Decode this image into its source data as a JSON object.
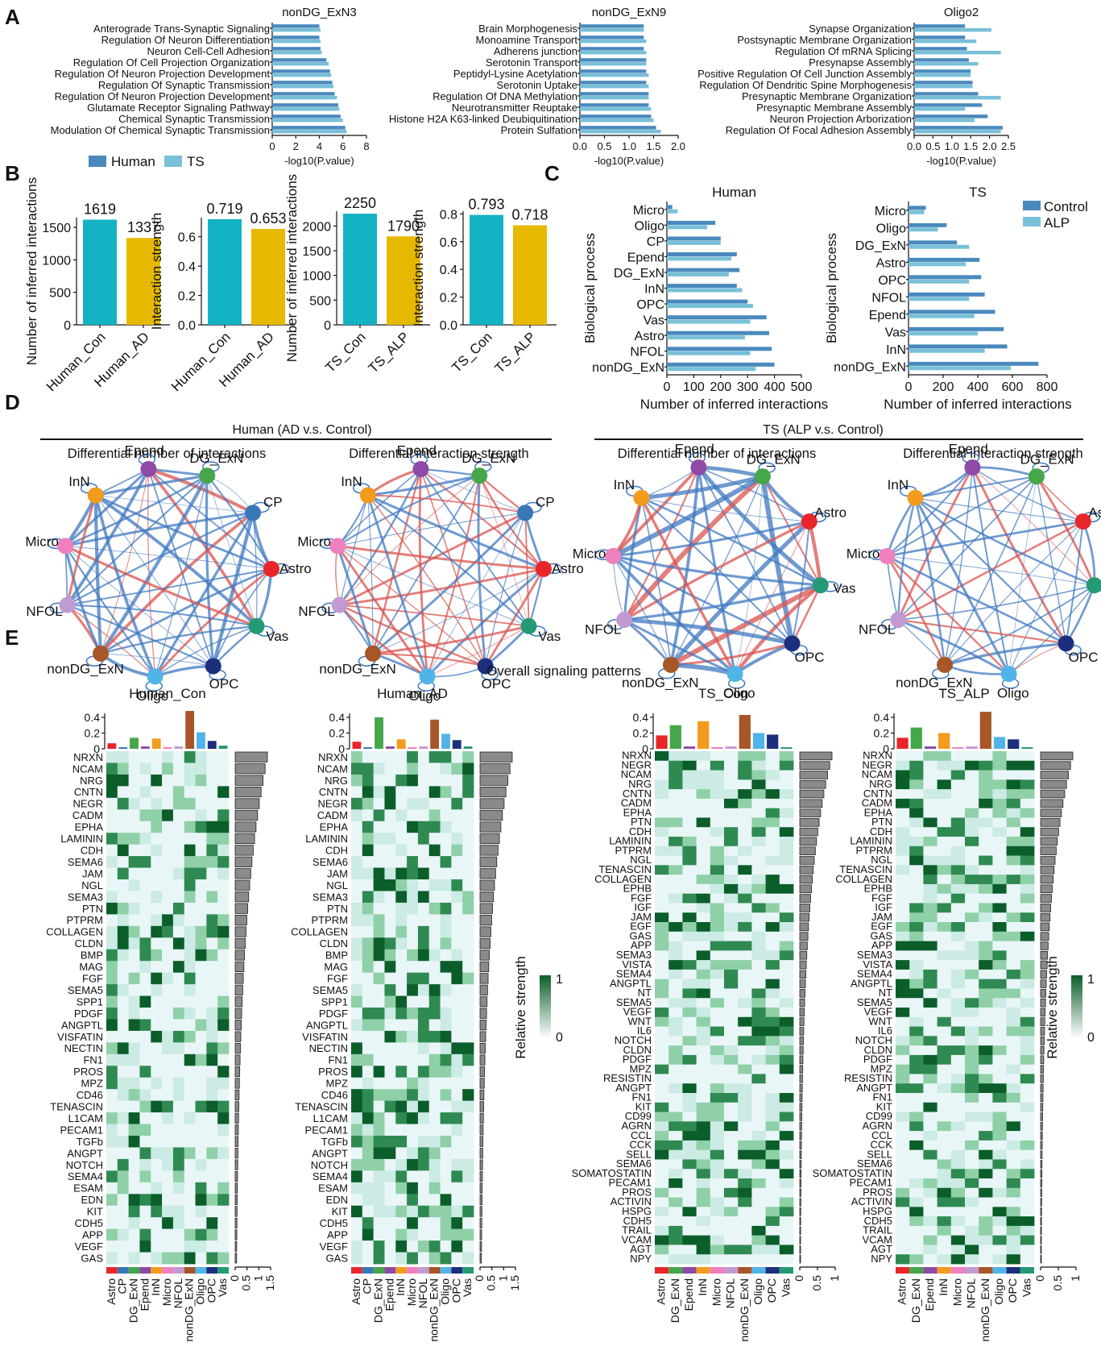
{
  "panel_letters": [
    "A",
    "B",
    "C",
    "D",
    "E"
  ],
  "colors": {
    "human": "#4a89bd",
    "ts": "#79c0d8",
    "control": "#4a89bd",
    "alp": "#79c0d8",
    "con_bar": "#14b3c3",
    "ad_bar": "#e6b800",
    "net_blue": "#3f78c0",
    "net_red": "#d9534f",
    "heat_dark": "#0b5e2a",
    "heat_light": "#e9f6f7",
    "barplot_gray": "#8a8a8a"
  },
  "celltype_colors": {
    "Astro": "#e8262a",
    "CP": "#3878b8",
    "DG_ExN": "#45a64a",
    "Epend": "#8e4aa6",
    "InN": "#f39b1c",
    "Micro": "#f07fbd",
    "NFOL": "#c29ad2",
    "nonDG_ExN": "#a65628",
    "Oligo": "#50b4e8",
    "OPC": "#1c2f7c",
    "Vas": "#249a74"
  },
  "chart_data": [
    {
      "panel": "A",
      "type": "bar",
      "title": "nonDG_ExN3",
      "orientation": "horizontal",
      "xlabel": "-log10(P.value)",
      "xlim": [
        0,
        8
      ],
      "xticks": [
        "0",
        "2",
        "4",
        "6",
        "8"
      ],
      "categories": [
        "Anterograde Trans-Synaptic Signaling",
        "Regulation Of Neuron Differentiation",
        "Neuron Cell-Cell Adhesion",
        "Regulation Of Cell Projection Organization",
        "Regulation Of Neuron Projection Development",
        "Regulation Of Synaptic Transmission",
        "Regulation Of Neuron Projection Development",
        "Glutamate Receptor Signaling Pathway",
        "Chemical Synaptic Transmission",
        "Modulation Of Chemical Synaptic Transmission"
      ],
      "series": [
        {
          "name": "Human",
          "values": [
            4.0,
            4.0,
            4.1,
            4.6,
            4.9,
            5.1,
            5.3,
            5.6,
            5.8,
            6.2
          ]
        },
        {
          "name": "TS",
          "values": [
            4.1,
            4.1,
            4.2,
            4.8,
            5.0,
            5.2,
            5.5,
            5.7,
            6.0,
            6.3
          ]
        }
      ]
    },
    {
      "panel": "A",
      "type": "bar",
      "title": "nonDG_ExN9",
      "orientation": "horizontal",
      "xlabel": "-log10(P.value)",
      "xlim": [
        0,
        2
      ],
      "xticks": [
        "0.0",
        "0.5",
        "1.0",
        "1.5",
        "2.0"
      ],
      "categories": [
        "Brain Morphogenesis",
        "Monoamine Transport",
        "Adherens junction",
        "Serotonin Transport",
        "Peptidyl-Lysine Acetylation",
        "Serotonin Uptake",
        "Regulation Of DNA Methylation",
        "Neurotransmitter Reuptake",
        "Histone H2A K63-linked Deubiquitination",
        "Protein Sulfation"
      ],
      "series": [
        {
          "name": "Human",
          "values": [
            1.3,
            1.3,
            1.3,
            1.35,
            1.35,
            1.35,
            1.4,
            1.4,
            1.45,
            1.55
          ]
        },
        {
          "name": "TS",
          "values": [
            1.3,
            1.35,
            1.35,
            1.35,
            1.4,
            1.4,
            1.4,
            1.45,
            1.5,
            1.65
          ]
        }
      ]
    },
    {
      "panel": "A",
      "type": "bar",
      "title": "Oligo2",
      "orientation": "horizontal",
      "xlabel": "-log10(P.value)",
      "xlim": [
        0,
        2.5
      ],
      "xticks": [
        "0.0",
        "0.5",
        "1.0",
        "1.5",
        "2.0",
        "2.5"
      ],
      "categories": [
        "Synapse Organization",
        "Postsynaptic Membrane Organization",
        "Regulation Of mRNA Splicing",
        "Presynapse Assembly",
        "Positive Regulation Of Cell Junction Assembly",
        "Regulation Of Dendritic Spine Morphogenesis",
        "Presynaptic Membrane Organization",
        "Presynaptic Membrane Assembly",
        "Neuron Projection Arborization",
        "Regulation Of Focal Adhesion Assembly"
      ],
      "series": [
        {
          "name": "Human",
          "values": [
            1.35,
            1.35,
            1.4,
            1.45,
            1.5,
            1.55,
            1.7,
            1.8,
            1.95,
            2.35
          ]
        },
        {
          "name": "TS",
          "values": [
            2.05,
            1.65,
            2.3,
            1.7,
            1.5,
            1.55,
            2.3,
            1.35,
            1.6,
            2.3
          ]
        }
      ]
    },
    {
      "panel": "B",
      "type": "bar",
      "ylabel": "Number of inferred interactions",
      "ylim": [
        0,
        1650
      ],
      "yticks": [
        "0",
        "500",
        "1000",
        "1500"
      ],
      "categories": [
        "Human_Con",
        "Human_AD"
      ],
      "values": [
        1619,
        1337
      ],
      "data_labels": [
        "1619",
        "1337"
      ]
    },
    {
      "panel": "B",
      "type": "bar",
      "ylabel": "Interaction strength",
      "ylim": [
        0,
        0.73
      ],
      "yticks": [
        "0.0",
        "0.2",
        "0.4",
        "0.6"
      ],
      "categories": [
        "Human_Con",
        "Human_AD"
      ],
      "values": [
        0.719,
        0.653
      ],
      "data_labels": [
        "0.719",
        "0.653"
      ]
    },
    {
      "panel": "B",
      "type": "bar",
      "ylabel": "Number of inferred interactions",
      "ylim": [
        0,
        2300
      ],
      "yticks": [
        "0",
        "500",
        "1000",
        "1500",
        "2000"
      ],
      "categories": [
        "TS_Con",
        "TS_ALP"
      ],
      "values": [
        2250,
        1790
      ],
      "data_labels": [
        "2250",
        "1790"
      ]
    },
    {
      "panel": "B",
      "type": "bar",
      "ylabel": "Interaction strength",
      "ylim": [
        0,
        0.82
      ],
      "yticks": [
        "0.0",
        "0.2",
        "0.4",
        "0.6",
        "0.8"
      ],
      "categories": [
        "TS_Con",
        "TS_ALP"
      ],
      "values": [
        0.793,
        0.718
      ],
      "data_labels": [
        "0.793",
        "0.718"
      ]
    },
    {
      "panel": "C",
      "type": "bar",
      "title": "Human",
      "orientation": "horizontal",
      "ylabel": "Biological process",
      "xlabel": "Number of inferred interactions",
      "xlim": [
        0,
        500
      ],
      "xticks": [
        "0",
        "100",
        "200",
        "300",
        "400",
        "500"
      ],
      "categories": [
        "Micro",
        "Oligo",
        "CP",
        "Epend",
        "DG_ExN",
        "InN",
        "OPC",
        "Vas",
        "Astro",
        "NFOL",
        "nonDG_ExN"
      ],
      "series": [
        {
          "name": "Control",
          "values": [
            20,
            180,
            200,
            260,
            270,
            260,
            300,
            370,
            380,
            390,
            400
          ]
        },
        {
          "name": "ALP",
          "values": [
            40,
            150,
            200,
            240,
            230,
            280,
            320,
            310,
            290,
            310,
            330
          ]
        }
      ]
    },
    {
      "panel": "C",
      "type": "bar",
      "title": "TS",
      "orientation": "horizontal",
      "ylabel": "Biological process",
      "xlabel": "Number of inferred interactions",
      "xlim": [
        0,
        800
      ],
      "xticks": [
        "0",
        "200",
        "400",
        "600",
        "800"
      ],
      "categories": [
        "Micro",
        "Oligo",
        "DG_ExN",
        "Astro",
        "OPC",
        "NFOL",
        "Epend",
        "Vas",
        "InN",
        "nonDG_ExN"
      ],
      "series": [
        {
          "name": "Control",
          "values": [
            100,
            220,
            280,
            410,
            420,
            440,
            500,
            550,
            570,
            750
          ]
        },
        {
          "name": "ALP",
          "values": [
            90,
            170,
            350,
            330,
            350,
            350,
            380,
            400,
            440,
            590
          ]
        }
      ]
    },
    {
      "panel": "E",
      "type": "heatmap",
      "title": "Human_Con",
      "rows": [
        "NRXN",
        "NCAM",
        "NRG",
        "CNTN",
        "NEGR",
        "CADM",
        "EPHA",
        "LAMININ",
        "CDH",
        "SEMA6",
        "JAM",
        "NGL",
        "SEMA3",
        "PTN",
        "PTPRM",
        "COLLAGEN",
        "CLDN",
        "BMP",
        "MAG",
        "FGF",
        "SEMA5",
        "SPP1",
        "PDGF",
        "ANGPTL",
        "VISFATIN",
        "NECTIN",
        "FN1",
        "PROS",
        "MPZ",
        "CD46",
        "TENASCIN",
        "L1CAM",
        "PECAM1",
        "TGFb",
        "ANGPT",
        "NOTCH",
        "SEMA4",
        "ESAM",
        "EDN",
        "KIT",
        "CDH5",
        "APP",
        "VEGF",
        "GAS"
      ],
      "columns": [
        "Astro",
        "CP",
        "DG_ExN",
        "Epend",
        "InN",
        "Micro",
        "NFOL",
        "nonDG_ExN",
        "Oligo",
        "OPC",
        "Vas"
      ],
      "top_bars": [
        0.07,
        0.02,
        0.14,
        0.03,
        0.13,
        0.02,
        0.03,
        0.48,
        0.21,
        0.1,
        0.04
      ],
      "top_yticks": [
        "0",
        "0.2",
        "0.4"
      ],
      "right_xticks": [
        "0",
        "0.5",
        "1",
        "1.5"
      ],
      "legend_title": "Relative strength",
      "legend_ticks": [
        "0",
        "1"
      ]
    },
    {
      "panel": "E",
      "type": "heatmap",
      "title": "Human_AD",
      "rows": [
        "NRXN",
        "NCAM",
        "NRG",
        "CNTN",
        "NEGR",
        "CADM",
        "EPHA",
        "LAMININ",
        "CDH",
        "SEMA6",
        "JAM",
        "NGL",
        "SEMA3",
        "PTN",
        "PTPRM",
        "COLLAGEN",
        "CLDN",
        "BMP",
        "MAG",
        "FGF",
        "SEMA5",
        "SPP1",
        "PDGF",
        "ANGPTL",
        "VISFATIN",
        "NECTIN",
        "FN1",
        "PROS",
        "MPZ",
        "CD46",
        "TENASCIN",
        "L1CAM",
        "PECAM1",
        "TGFb",
        "ANGPT",
        "NOTCH",
        "SEMA4",
        "ESAM",
        "EDN",
        "KIT",
        "CDH5",
        "APP",
        "VEGF",
        "GAS"
      ],
      "columns": [
        "Astro",
        "CP",
        "DG_ExN",
        "Epend",
        "InN",
        "Micro",
        "NFOL",
        "nonDG_ExN",
        "Oligo",
        "OPC",
        "Vas"
      ],
      "top_bars": [
        0.09,
        0.02,
        0.4,
        0.03,
        0.12,
        0.02,
        0.03,
        0.37,
        0.19,
        0.11,
        0.03
      ],
      "top_yticks": [
        "0",
        "0.2",
        "0.4"
      ],
      "right_xticks": [
        "0",
        "0.5",
        "1",
        "1.5"
      ]
    },
    {
      "panel": "E",
      "type": "heatmap",
      "title": "TS_Con",
      "rows": [
        "NRXN",
        "NEGR",
        "NCAM",
        "NRG",
        "CNTN",
        "CADM",
        "EPHA",
        "PTN",
        "CDH",
        "LAMININ",
        "PTPRM",
        "NGL",
        "TENASCIN",
        "COLLAGEN",
        "EPHB",
        "FGF",
        "IGF",
        "JAM",
        "EGF",
        "GAS",
        "APP",
        "SEMA3",
        "VISTA",
        "SEMA4",
        "ANGPTL",
        "NT",
        "SEMA5",
        "VEGF",
        "WNT",
        "IL6",
        "NOTCH",
        "CLDN",
        "PDGF",
        "MPZ",
        "RESISTIN",
        "ANGPT",
        "FN1",
        "KIT",
        "CD99",
        "AGRN",
        "CCL",
        "CCK",
        "SELL",
        "SEMA6",
        "SOMATOSTATIN",
        "PECAM1",
        "PROS",
        "ACTIVIN",
        "HSPG",
        "CDH5",
        "TRAIL",
        "VCAM",
        "AGT",
        "NPY"
      ],
      "columns": [
        "Astro",
        "DG_ExN",
        "Epend",
        "InN",
        "Micro",
        "NFOL",
        "nonDG_ExN",
        "Oligo",
        "OPC",
        "Vas"
      ],
      "top_bars": [
        0.17,
        0.3,
        0.03,
        0.35,
        0.02,
        0.03,
        0.43,
        0.2,
        0.18,
        0.02
      ],
      "top_yticks": [
        "0",
        "0.2",
        "0.4"
      ],
      "right_xticks": [
        "0",
        "0.5",
        "1"
      ]
    },
    {
      "panel": "E",
      "type": "heatmap",
      "title": "TS_ALP",
      "rows": [
        "NRXN",
        "NEGR",
        "NCAM",
        "NRG",
        "CNTN",
        "CADM",
        "EPHA",
        "PTN",
        "CDH",
        "LAMININ",
        "PTPRM",
        "NGL",
        "TENASCIN",
        "COLLAGEN",
        "EPHB",
        "FGF",
        "IGF",
        "JAM",
        "EGF",
        "GAS",
        "APP",
        "SEMA3",
        "VISTA",
        "SEMA4",
        "ANGPTL",
        "NT",
        "SEMA5",
        "VEGF",
        "WNT",
        "IL6",
        "NOTCH",
        "CLDN",
        "PDGF",
        "MPZ",
        "RESISTIN",
        "ANGPT",
        "FN1",
        "KIT",
        "CD99",
        "AGRN",
        "CCL",
        "CCK",
        "SELL",
        "SEMA6",
        "SOMATOSTATIN",
        "PECAM1",
        "PROS",
        "ACTIVIN",
        "HSPG",
        "CDH5",
        "TRAIL",
        "VCAM",
        "AGT",
        "NPY"
      ],
      "columns": [
        "Astro",
        "DG_ExN",
        "Epend",
        "InN",
        "Micro",
        "NFOL",
        "nonDG_ExN",
        "Oligo",
        "OPC",
        "Vas"
      ],
      "top_bars": [
        0.14,
        0.27,
        0.03,
        0.2,
        0.02,
        0.03,
        0.47,
        0.15,
        0.12,
        0.02
      ],
      "top_yticks": [
        "0",
        "0.2",
        "0.4"
      ],
      "right_xticks": [
        "0",
        "0.5",
        "1"
      ],
      "legend_title": "Relative strength",
      "legend_ticks": [
        "0",
        "1"
      ]
    }
  ],
  "panelA_legend": [
    {
      "name": "Human"
    },
    {
      "name": "TS"
    }
  ],
  "panelC_legend": [
    {
      "name": "Control"
    },
    {
      "name": "ALP"
    }
  ],
  "panelD": {
    "group_titles": [
      "Human (AD v.s. Control)",
      "TS (ALP v.s. Control)"
    ],
    "sub_titles": [
      "Differential number of interactions",
      "Differential interaction strength",
      "Differential number of interactions",
      "Differential interaction strength"
    ],
    "networks": [
      [
        "Epend",
        "DG_ExN",
        "CP",
        "Astro",
        "Vas",
        "OPC",
        "Oligo",
        "nonDG_ExN",
        "NFOL",
        "Micro",
        "InN"
      ],
      [
        "Epend",
        "DG_ExN",
        "CP",
        "Astro",
        "Vas",
        "OPC",
        "Oligo",
        "nonDG_ExN",
        "NFOL",
        "Micro",
        "InN"
      ],
      [
        "Epend",
        "DG_ExN",
        "Astro",
        "Vas",
        "OPC",
        "Oligo",
        "nonDG_ExN",
        "NFOL",
        "Micro",
        "InN"
      ],
      [
        "Epend",
        "DG_ExN",
        "Astro",
        "Vas",
        "OPC",
        "Oligo",
        "nonDG_ExN",
        "NFOL",
        "Micro",
        "InN"
      ]
    ]
  },
  "panelE_title": "Overall signaling patterns"
}
